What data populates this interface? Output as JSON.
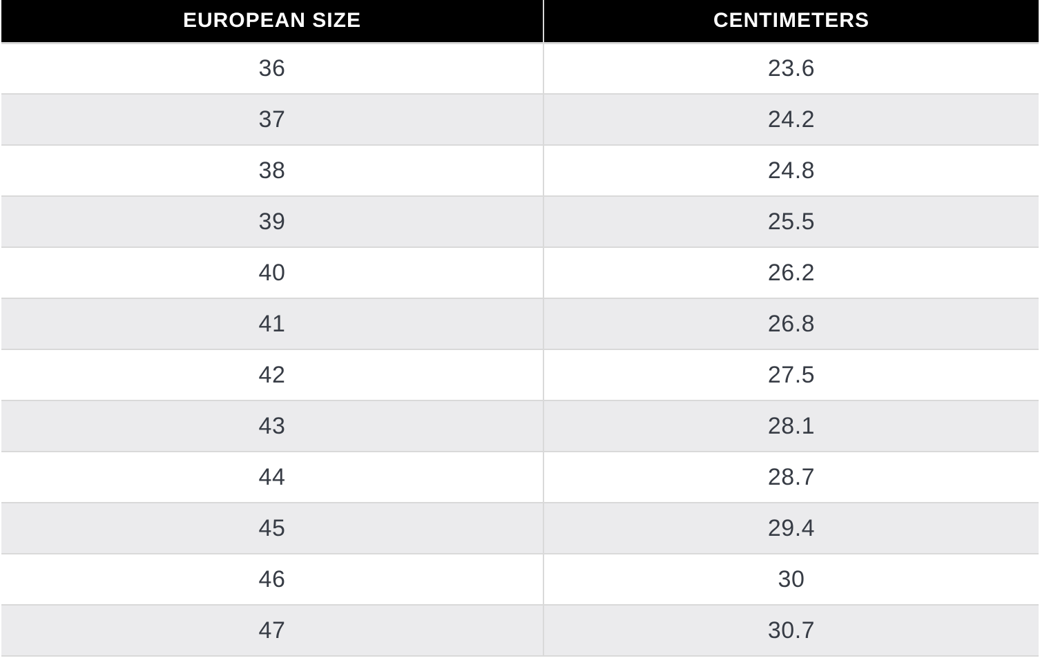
{
  "table": {
    "columns": [
      {
        "label": "EUROPEAN SIZE"
      },
      {
        "label": "CENTIMETERS"
      }
    ],
    "rows": [
      {
        "european_size": "36",
        "centimeters": "23.6"
      },
      {
        "european_size": "37",
        "centimeters": "24.2"
      },
      {
        "european_size": "38",
        "centimeters": "24.8"
      },
      {
        "european_size": "39",
        "centimeters": "25.5"
      },
      {
        "european_size": "40",
        "centimeters": "26.2"
      },
      {
        "european_size": "41",
        "centimeters": "26.8"
      },
      {
        "european_size": "42",
        "centimeters": "27.5"
      },
      {
        "european_size": "43",
        "centimeters": "28.1"
      },
      {
        "european_size": "44",
        "centimeters": "28.7"
      },
      {
        "european_size": "45",
        "centimeters": "29.4"
      },
      {
        "european_size": "46",
        "centimeters": "30"
      },
      {
        "european_size": "47",
        "centimeters": "30.7"
      }
    ]
  },
  "chart_data": {
    "type": "table",
    "columns": [
      "EUROPEAN SIZE",
      "CENTIMETERS"
    ],
    "rows": [
      [
        36,
        23.6
      ],
      [
        37,
        24.2
      ],
      [
        38,
        24.8
      ],
      [
        39,
        25.5
      ],
      [
        40,
        26.2
      ],
      [
        41,
        26.8
      ],
      [
        42,
        27.5
      ],
      [
        43,
        28.1
      ],
      [
        44,
        28.7
      ],
      [
        45,
        29.4
      ],
      [
        46,
        30
      ],
      [
        47,
        30.7
      ]
    ]
  },
  "colors": {
    "page_background": "#ffffff",
    "header_background": "#000000",
    "header_text": "#ffffff",
    "row_even_background": "#ffffff",
    "row_odd_background": "#ebebed",
    "grid_line": "#d9d9d9",
    "cell_text": "#373c45"
  }
}
